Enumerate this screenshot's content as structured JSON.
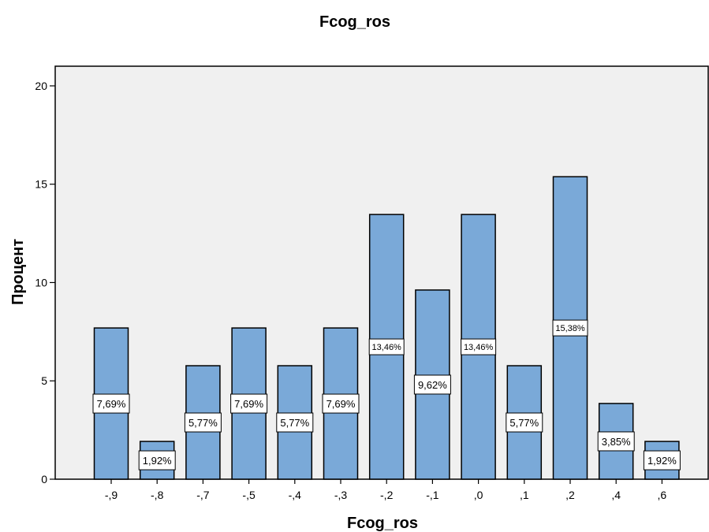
{
  "chart_data": {
    "type": "bar",
    "title": "Fcog_ros",
    "xlabel": "Fcog_ros",
    "ylabel": "Процент",
    "ylim": [
      0,
      21
    ],
    "yticks": [
      0,
      5,
      10,
      15,
      20
    ],
    "ytick_labels": [
      "0",
      "5",
      "10",
      "15",
      "20"
    ],
    "grid": false,
    "legend": "none",
    "categories": [
      "-,9",
      "-,8",
      "-,7",
      "-,5",
      "-,4",
      "-,3",
      "-,2",
      "-,1",
      ",0",
      ",1",
      ",2",
      ",4",
      ",6"
    ],
    "values": [
      7.69,
      1.92,
      5.77,
      7.69,
      5.77,
      7.69,
      13.46,
      9.62,
      13.46,
      5.77,
      15.38,
      3.85,
      1.92
    ],
    "data_labels": [
      "7,69%",
      "1,92%",
      "5,77%",
      "7,69%",
      "5,77%",
      "7,69%",
      "13,46%",
      "9,62%",
      "13,46%",
      "5,77%",
      "15,38%",
      "3,85%",
      "1,92%"
    ],
    "colors": {
      "bar_fill": "#7aa9d8",
      "bar_stroke": "#000000",
      "plot_background": "#f0f0f0",
      "label_box": "#ffffff"
    }
  }
}
